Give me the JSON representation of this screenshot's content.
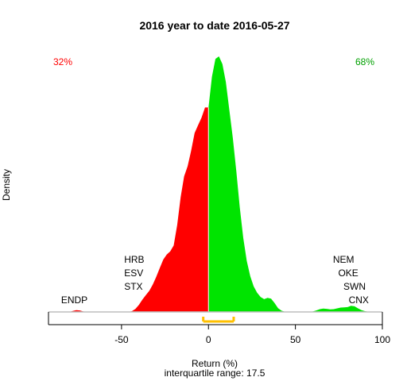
{
  "chart_data": {
    "type": "area",
    "title": "2016  year to date 2016-05-27",
    "xlabel": "Return (%)",
    "ylabel": "Density",
    "subtitle": "interquartile range: 17.5",
    "xlim": [
      -92,
      100
    ],
    "ylim": [
      0,
      1
    ],
    "x_ticks": [
      -50,
      0,
      50,
      100
    ],
    "x_tick_labels": [
      "-50",
      "0",
      "50",
      "100"
    ],
    "negative_pct_label": "32%",
    "positive_pct_label": "68%",
    "interquartile": {
      "q1": -3,
      "q3": 14.5,
      "value": 17.5
    },
    "colors": {
      "negative": "#ff0000",
      "positive": "#00e400",
      "iqr": "#ffc000",
      "baseline": "#bebebe",
      "divider": "#ffffff"
    },
    "density_curve": {
      "x": [
        -80,
        -78,
        -76,
        -74,
        -72,
        -70,
        -68,
        -66,
        -64,
        -62,
        -60,
        -58,
        -56,
        -54,
        -52,
        -50,
        -48,
        -46,
        -44,
        -42,
        -40,
        -38,
        -36,
        -34,
        -32,
        -30,
        -28,
        -26,
        -24,
        -22,
        -20,
        -18,
        -16,
        -14,
        -12,
        -10,
        -8,
        -6,
        -4,
        -2,
        0,
        2,
        4,
        6,
        8,
        10,
        12,
        14,
        16,
        18,
        20,
        22,
        24,
        26,
        28,
        30,
        32,
        34,
        36,
        38,
        40,
        42,
        44,
        46,
        48,
        50,
        52,
        54,
        56,
        58,
        60,
        62,
        64,
        66,
        68,
        70,
        72,
        74,
        76,
        78,
        80,
        82,
        84,
        86,
        88,
        90,
        92,
        94
      ],
      "y": [
        0,
        0.004,
        0.007,
        0.006,
        0.002,
        0,
        0,
        0,
        0,
        0,
        0,
        0,
        0,
        0,
        0,
        0,
        0,
        0,
        0.003,
        0.012,
        0.028,
        0.048,
        0.066,
        0.083,
        0.108,
        0.138,
        0.172,
        0.205,
        0.225,
        0.237,
        0.26,
        0.34,
        0.45,
        0.53,
        0.57,
        0.63,
        0.7,
        0.73,
        0.76,
        0.8,
        0.8,
        0.92,
        0.99,
        1.0,
        0.97,
        0.9,
        0.79,
        0.68,
        0.55,
        0.41,
        0.29,
        0.2,
        0.14,
        0.1,
        0.075,
        0.058,
        0.05,
        0.055,
        0.052,
        0.035,
        0.015,
        0.005,
        0.001,
        0,
        0,
        0,
        0,
        0,
        0,
        0,
        0.002,
        0.006,
        0.011,
        0.013,
        0.012,
        0.01,
        0.011,
        0.014,
        0.017,
        0.018,
        0.019,
        0.024,
        0.022,
        0.014,
        0.007,
        0.003,
        0.001,
        0
      ]
    },
    "negative_tickers": [
      {
        "label": "HRB",
        "x": -43
      },
      {
        "label": "ESV",
        "x": -43
      },
      {
        "label": "STX",
        "x": -43
      },
      {
        "label": "ENDP",
        "x": -77
      }
    ],
    "positive_tickers": [
      {
        "label": "NEM",
        "x": 78
      },
      {
        "label": "OKE",
        "x": 81
      },
      {
        "label": "SWN",
        "x": 84
      },
      {
        "label": "CNX",
        "x": 87
      }
    ]
  }
}
